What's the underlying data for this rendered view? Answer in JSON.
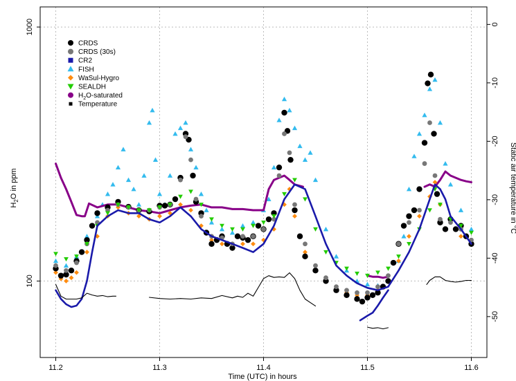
{
  "chart_data": {
    "type": "line",
    "title": "",
    "xlabel": "Time (UTC) in hours",
    "ylabel": "H2O in ppm",
    "ylabel_parts": {
      "pre": "H",
      "sub": "2",
      "post": "O in ppm"
    },
    "y2label": "Static air temperature in °C",
    "x_ticks": [
      "11.2",
      "11.3",
      "11.4",
      "11.5",
      "11.6"
    ],
    "x_tick_values": [
      11.2,
      11.3,
      11.4,
      11.5,
      11.6
    ],
    "y_ticks": [
      "100",
      "1000"
    ],
    "y_tick_values": [
      100,
      1000
    ],
    "y2_ticks": [
      "0",
      "-10",
      "-20",
      "-30",
      "-40",
      "-50"
    ],
    "y2_tick_values": [
      0,
      -10,
      -20,
      -30,
      -40,
      -50
    ],
    "xlim": [
      11.185,
      11.615
    ],
    "ylim": [
      50,
      1200
    ],
    "y_scale": "log",
    "y2lim": [
      -57,
      3
    ],
    "grid": true,
    "legend_position": "top-left",
    "colors": {
      "CRDS": "#000000",
      "CRDS (30s)": "#777777",
      "CR2": "#1a1aaa",
      "FISH": "#33bbee",
      "WaSul-Hygro": "#ff8c10",
      "SEALDH": "#22cc00",
      "H2O-saturated": "#880088",
      "Temperature": "#000000"
    },
    "legend": [
      {
        "name": "CRDS",
        "marker": "circle",
        "color": "#000000"
      },
      {
        "name": "CRDS (30s)",
        "marker": "circle",
        "color": "#777777"
      },
      {
        "name": "CR2",
        "marker": "square",
        "color": "#1a1aaa"
      },
      {
        "name": "FISH",
        "marker": "triangle",
        "color": "#33bbee"
      },
      {
        "name": "WaSul-Hygro",
        "marker": "diamond",
        "color": "#ff8c10"
      },
      {
        "name": "SEALDH",
        "marker": "triangle-down",
        "color": "#22cc00"
      },
      {
        "name": "H2O-saturated",
        "label_parts": {
          "pre": "H",
          "sub": "2",
          "post": "O-saturated"
        },
        "marker": "circle",
        "color": "#880088"
      },
      {
        "name": "Temperature",
        "marker": "small-square",
        "color": "#000000"
      }
    ],
    "series": [
      {
        "name": "CRDS",
        "axis": "left",
        "style": "dots",
        "color": "#000000",
        "size": 4.2,
        "x": [
          11.2,
          11.205,
          11.21,
          11.215,
          11.22,
          11.225,
          11.23,
          11.235,
          11.24,
          11.25,
          11.26,
          11.27,
          11.28,
          11.29,
          11.3,
          11.305,
          11.31,
          11.315,
          11.32,
          11.325,
          11.328,
          11.332,
          11.335,
          11.34,
          11.345,
          11.35,
          11.355,
          11.36,
          11.365,
          11.37,
          11.375,
          11.38,
          11.385,
          11.39,
          11.395,
          11.4,
          11.405,
          11.41,
          11.415,
          11.42,
          11.423,
          11.426,
          11.43,
          11.435,
          11.44,
          11.45,
          11.46,
          11.47,
          11.48,
          11.49,
          11.495,
          11.5,
          11.505,
          11.51,
          11.515,
          11.52,
          11.525,
          11.53,
          11.535,
          11.54,
          11.545,
          11.55,
          11.555,
          11.558,
          11.561,
          11.564,
          11.567,
          11.57,
          11.575,
          11.58,
          11.585,
          11.59,
          11.595,
          11.6
        ],
        "y": [
          112,
          105,
          106,
          110,
          120,
          130,
          145,
          165,
          185,
          195,
          205,
          196,
          190,
          188,
          198,
          198,
          200,
          210,
          255,
          380,
          360,
          260,
          205,
          185,
          155,
          140,
          145,
          150,
          140,
          135,
          150,
          148,
          145,
          150,
          165,
          160,
          175,
          185,
          280,
          460,
          390,
          300,
          190,
          150,
          125,
          110,
          100,
          92,
          88,
          85,
          83,
          86,
          88,
          90,
          95,
          100,
          118,
          140,
          165,
          180,
          190,
          230,
          350,
          600,
          650,
          380,
          220,
          170,
          160,
          175,
          160,
          165,
          150,
          140
        ]
      },
      {
        "name": "CRDS (30s)",
        "axis": "left",
        "style": "dots",
        "color": "#777777",
        "size": 3.4,
        "x": [
          11.2,
          11.21,
          11.22,
          11.23,
          11.24,
          11.25,
          11.26,
          11.27,
          11.28,
          11.29,
          11.3,
          11.31,
          11.32,
          11.325,
          11.33,
          11.335,
          11.34,
          11.35,
          11.36,
          11.37,
          11.38,
          11.39,
          11.4,
          11.41,
          11.415,
          11.42,
          11.425,
          11.43,
          11.44,
          11.45,
          11.46,
          11.47,
          11.48,
          11.49,
          11.5,
          11.51,
          11.52,
          11.53,
          11.54,
          11.55,
          11.555,
          11.56,
          11.565,
          11.57,
          11.58,
          11.59,
          11.6
        ],
        "y": [
          115,
          110,
          118,
          140,
          170,
          190,
          200,
          195,
          190,
          190,
          195,
          200,
          250,
          370,
          300,
          210,
          180,
          150,
          148,
          140,
          150,
          150,
          160,
          175,
          260,
          380,
          320,
          200,
          140,
          115,
          103,
          95,
          92,
          90,
          90,
          95,
          105,
          140,
          170,
          190,
          290,
          420,
          260,
          175,
          170,
          160,
          145
        ]
      },
      {
        "name": "CR2",
        "axis": "left",
        "style": "line",
        "color": "#1a1aaa",
        "width": 2.6,
        "x": [
          11.2,
          11.205,
          11.21,
          11.215,
          11.22,
          11.225,
          11.23,
          11.235,
          11.24,
          11.25,
          11.26,
          11.27,
          11.28,
          11.29,
          11.3,
          11.31,
          11.32,
          11.33,
          11.34,
          11.35,
          11.36,
          11.37,
          11.38,
          11.39,
          11.4,
          11.41,
          11.42,
          11.43,
          11.44,
          11.45,
          11.46,
          11.47,
          11.48,
          11.49,
          11.5,
          11.51,
          11.52,
          11.53,
          11.54,
          11.55,
          11.56,
          11.565,
          11.57,
          11.575,
          11.58,
          11.59,
          11.6
        ],
        "y": [
          92,
          85,
          81,
          79,
          80,
          85,
          100,
          130,
          165,
          180,
          190,
          185,
          185,
          175,
          170,
          180,
          195,
          180,
          160,
          150,
          145,
          140,
          135,
          130,
          140,
          165,
          210,
          240,
          230,
          180,
          140,
          115,
          105,
          98,
          94,
          92,
          95,
          110,
          130,
          160,
          210,
          240,
          230,
          210,
          180,
          160,
          140
        ]
      },
      {
        "name": "CR2-low",
        "axis": "left",
        "style": "line",
        "color": "#1a1aaa",
        "width": 2.6,
        "x": [
          11.493,
          11.5,
          11.505,
          11.51,
          11.515,
          11.52
        ],
        "y": [
          70,
          73,
          75,
          80,
          86,
          92
        ]
      },
      {
        "name": "FISH",
        "axis": "left",
        "style": "triangles",
        "color": "#33bbee",
        "size": 3.6,
        "x": [
          11.2,
          11.21,
          11.22,
          11.23,
          11.24,
          11.245,
          11.25,
          11.255,
          11.26,
          11.265,
          11.27,
          11.275,
          11.28,
          11.285,
          11.29,
          11.293,
          11.296,
          11.3,
          11.305,
          11.31,
          11.315,
          11.32,
          11.325,
          11.33,
          11.335,
          11.34,
          11.345,
          11.35,
          11.36,
          11.37,
          11.38,
          11.39,
          11.4,
          11.405,
          11.41,
          11.415,
          11.42,
          11.425,
          11.43,
          11.435,
          11.44,
          11.445,
          11.45,
          11.46,
          11.47,
          11.48,
          11.49,
          11.5,
          11.51,
          11.52,
          11.53,
          11.535,
          11.54,
          11.545,
          11.55,
          11.555,
          11.56,
          11.565,
          11.57,
          11.575,
          11.58,
          11.59,
          11.6
        ],
        "y": [
          120,
          115,
          125,
          150,
          180,
          200,
          220,
          240,
          280,
          330,
          250,
          230,
          200,
          260,
          420,
          470,
          300,
          220,
          200,
          260,
          380,
          400,
          420,
          330,
          280,
          220,
          190,
          170,
          160,
          155,
          165,
          170,
          190,
          210,
          280,
          430,
          520,
          470,
          400,
          340,
          300,
          320,
          250,
          160,
          125,
          110,
          100,
          97,
          96,
          100,
          120,
          150,
          230,
          310,
          380,
          450,
          570,
          620,
          420,
          290,
          240,
          190,
          160
        ]
      },
      {
        "name": "WaSul-Hygro",
        "axis": "left",
        "style": "diamonds",
        "color": "#ff8c10",
        "size": 3.4,
        "x": [
          11.2,
          11.205,
          11.21,
          11.215,
          11.22,
          11.23,
          11.24,
          11.25,
          11.26,
          11.27,
          11.28,
          11.29,
          11.3,
          11.31,
          11.32,
          11.33,
          11.34,
          11.35,
          11.36,
          11.37,
          11.38,
          11.39,
          11.4,
          11.41,
          11.42,
          11.425,
          11.43,
          11.44,
          11.45,
          11.46,
          11.47,
          11.48,
          11.49,
          11.5,
          11.51,
          11.52,
          11.53,
          11.54,
          11.55,
          11.56,
          11.565,
          11.57,
          11.58,
          11.59,
          11.6
        ],
        "y": [
          108,
          102,
          100,
          103,
          108,
          130,
          150,
          180,
          195,
          185,
          180,
          175,
          180,
          185,
          200,
          190,
          165,
          145,
          140,
          135,
          140,
          140,
          145,
          160,
          200,
          230,
          180,
          130,
          110,
          100,
          93,
          90,
          88,
          88,
          92,
          100,
          120,
          150,
          180,
          215,
          245,
          200,
          170,
          150,
          140
        ]
      },
      {
        "name": "SEALDH",
        "axis": "left",
        "style": "triangles-down",
        "color": "#22cc00",
        "size": 3.4,
        "x": [
          11.2,
          11.21,
          11.22,
          11.23,
          11.24,
          11.25,
          11.26,
          11.27,
          11.28,
          11.29,
          11.3,
          11.31,
          11.32,
          11.33,
          11.34,
          11.35,
          11.36,
          11.37,
          11.38,
          11.39,
          11.4,
          11.41,
          11.42,
          11.43,
          11.44,
          11.45,
          11.46,
          11.47,
          11.48,
          11.49,
          11.5,
          11.51,
          11.52,
          11.53,
          11.54,
          11.55,
          11.56,
          11.565,
          11.57,
          11.58,
          11.59,
          11.6
        ],
        "y": [
          128,
          122,
          125,
          140,
          165,
          185,
          200,
          195,
          190,
          190,
          195,
          200,
          215,
          225,
          200,
          175,
          165,
          160,
          160,
          165,
          170,
          180,
          220,
          250,
          210,
          160,
          130,
          118,
          112,
          107,
          105,
          108,
          112,
          125,
          140,
          160,
          190,
          230,
          200,
          175,
          165,
          155
        ]
      },
      {
        "name": "H2O-saturated",
        "axis": "left",
        "style": "line",
        "color": "#880088",
        "width": 3,
        "x": [
          11.2,
          11.205,
          11.21,
          11.215,
          11.22,
          11.225,
          11.228,
          11.232,
          11.24,
          11.25,
          11.26,
          11.27,
          11.28,
          11.29,
          11.3,
          11.31,
          11.32,
          11.33,
          11.34,
          11.35,
          11.36,
          11.37,
          11.38,
          11.39,
          11.4,
          11.405,
          11.41,
          11.42,
          11.425,
          11.43,
          11.438
        ],
        "y": [
          290,
          255,
          230,
          205,
          182,
          180,
          180,
          202,
          195,
          200,
          200,
          195,
          190,
          188,
          185,
          190,
          195,
          198,
          200,
          195,
          195,
          192,
          192,
          190,
          190,
          230,
          250,
          260,
          250,
          240,
          235
        ]
      },
      {
        "name": "H2O-saturated-mid",
        "axis": "left",
        "style": "line",
        "color": "#880088",
        "width": 3,
        "x": [
          11.5,
          11.505,
          11.51,
          11.515,
          11.52
        ],
        "y": [
          105,
          104,
          104,
          103,
          104
        ]
      },
      {
        "name": "H2O-saturated-right",
        "axis": "left",
        "style": "line",
        "color": "#880088",
        "width": 3,
        "x": [
          11.555,
          11.56,
          11.565,
          11.57,
          11.575,
          11.58,
          11.585,
          11.59,
          11.595,
          11.6
        ],
        "y": [
          235,
          240,
          235,
          250,
          270,
          260,
          255,
          250,
          247,
          245
        ]
      },
      {
        "name": "Temperature",
        "axis": "right",
        "style": "line",
        "color": "#000000",
        "width": 1.1,
        "x": [
          11.2,
          11.205,
          11.21,
          11.215,
          11.22,
          11.225,
          11.23,
          11.235,
          11.24,
          11.245,
          11.25,
          11.255,
          11.258
        ],
        "y": [
          -44.5,
          -46.5,
          -47,
          -47,
          -47,
          -46.8,
          -46,
          -46.3,
          -46.5,
          -46.4,
          -46.6,
          -46.5,
          -46.5
        ]
      },
      {
        "name": "Temperature-2",
        "axis": "right",
        "style": "line",
        "color": "#000000",
        "width": 1.1,
        "x": [
          11.29,
          11.3,
          11.31,
          11.32,
          11.33,
          11.34,
          11.35,
          11.36,
          11.37,
          11.375,
          11.38,
          11.385,
          11.39,
          11.395,
          11.4,
          11.405,
          11.41,
          11.415,
          11.42,
          11.425,
          11.43,
          11.435,
          11.44,
          11.445,
          11.45
        ],
        "y": [
          -46.7,
          -46.9,
          -47,
          -46.9,
          -47,
          -46.8,
          -46.9,
          -46.4,
          -46.8,
          -46.5,
          -46.7,
          -46,
          -46.5,
          -45,
          -43.5,
          -43,
          -43.3,
          -43.2,
          -43.3,
          -42.5,
          -43.5,
          -45.5,
          -47,
          -47.6,
          -48.2
        ]
      },
      {
        "name": "Temperature-3",
        "axis": "right",
        "style": "line",
        "color": "#000000",
        "width": 1.1,
        "x": [
          11.5,
          11.505,
          11.51,
          11.515,
          11.52
        ],
        "y": [
          -51.8,
          -52,
          -51.9,
          -52.1,
          -51.9
        ]
      },
      {
        "name": "Temperature-4",
        "axis": "right",
        "style": "line",
        "color": "#000000",
        "width": 1.1,
        "x": [
          11.557,
          11.56,
          11.565,
          11.57,
          11.575,
          11.58,
          11.585,
          11.59,
          11.595,
          11.6
        ],
        "y": [
          -44.5,
          -43.8,
          -43.2,
          -43.2,
          -43.8,
          -44,
          -44.1,
          -44,
          -43.8,
          -43.8
        ]
      }
    ]
  }
}
